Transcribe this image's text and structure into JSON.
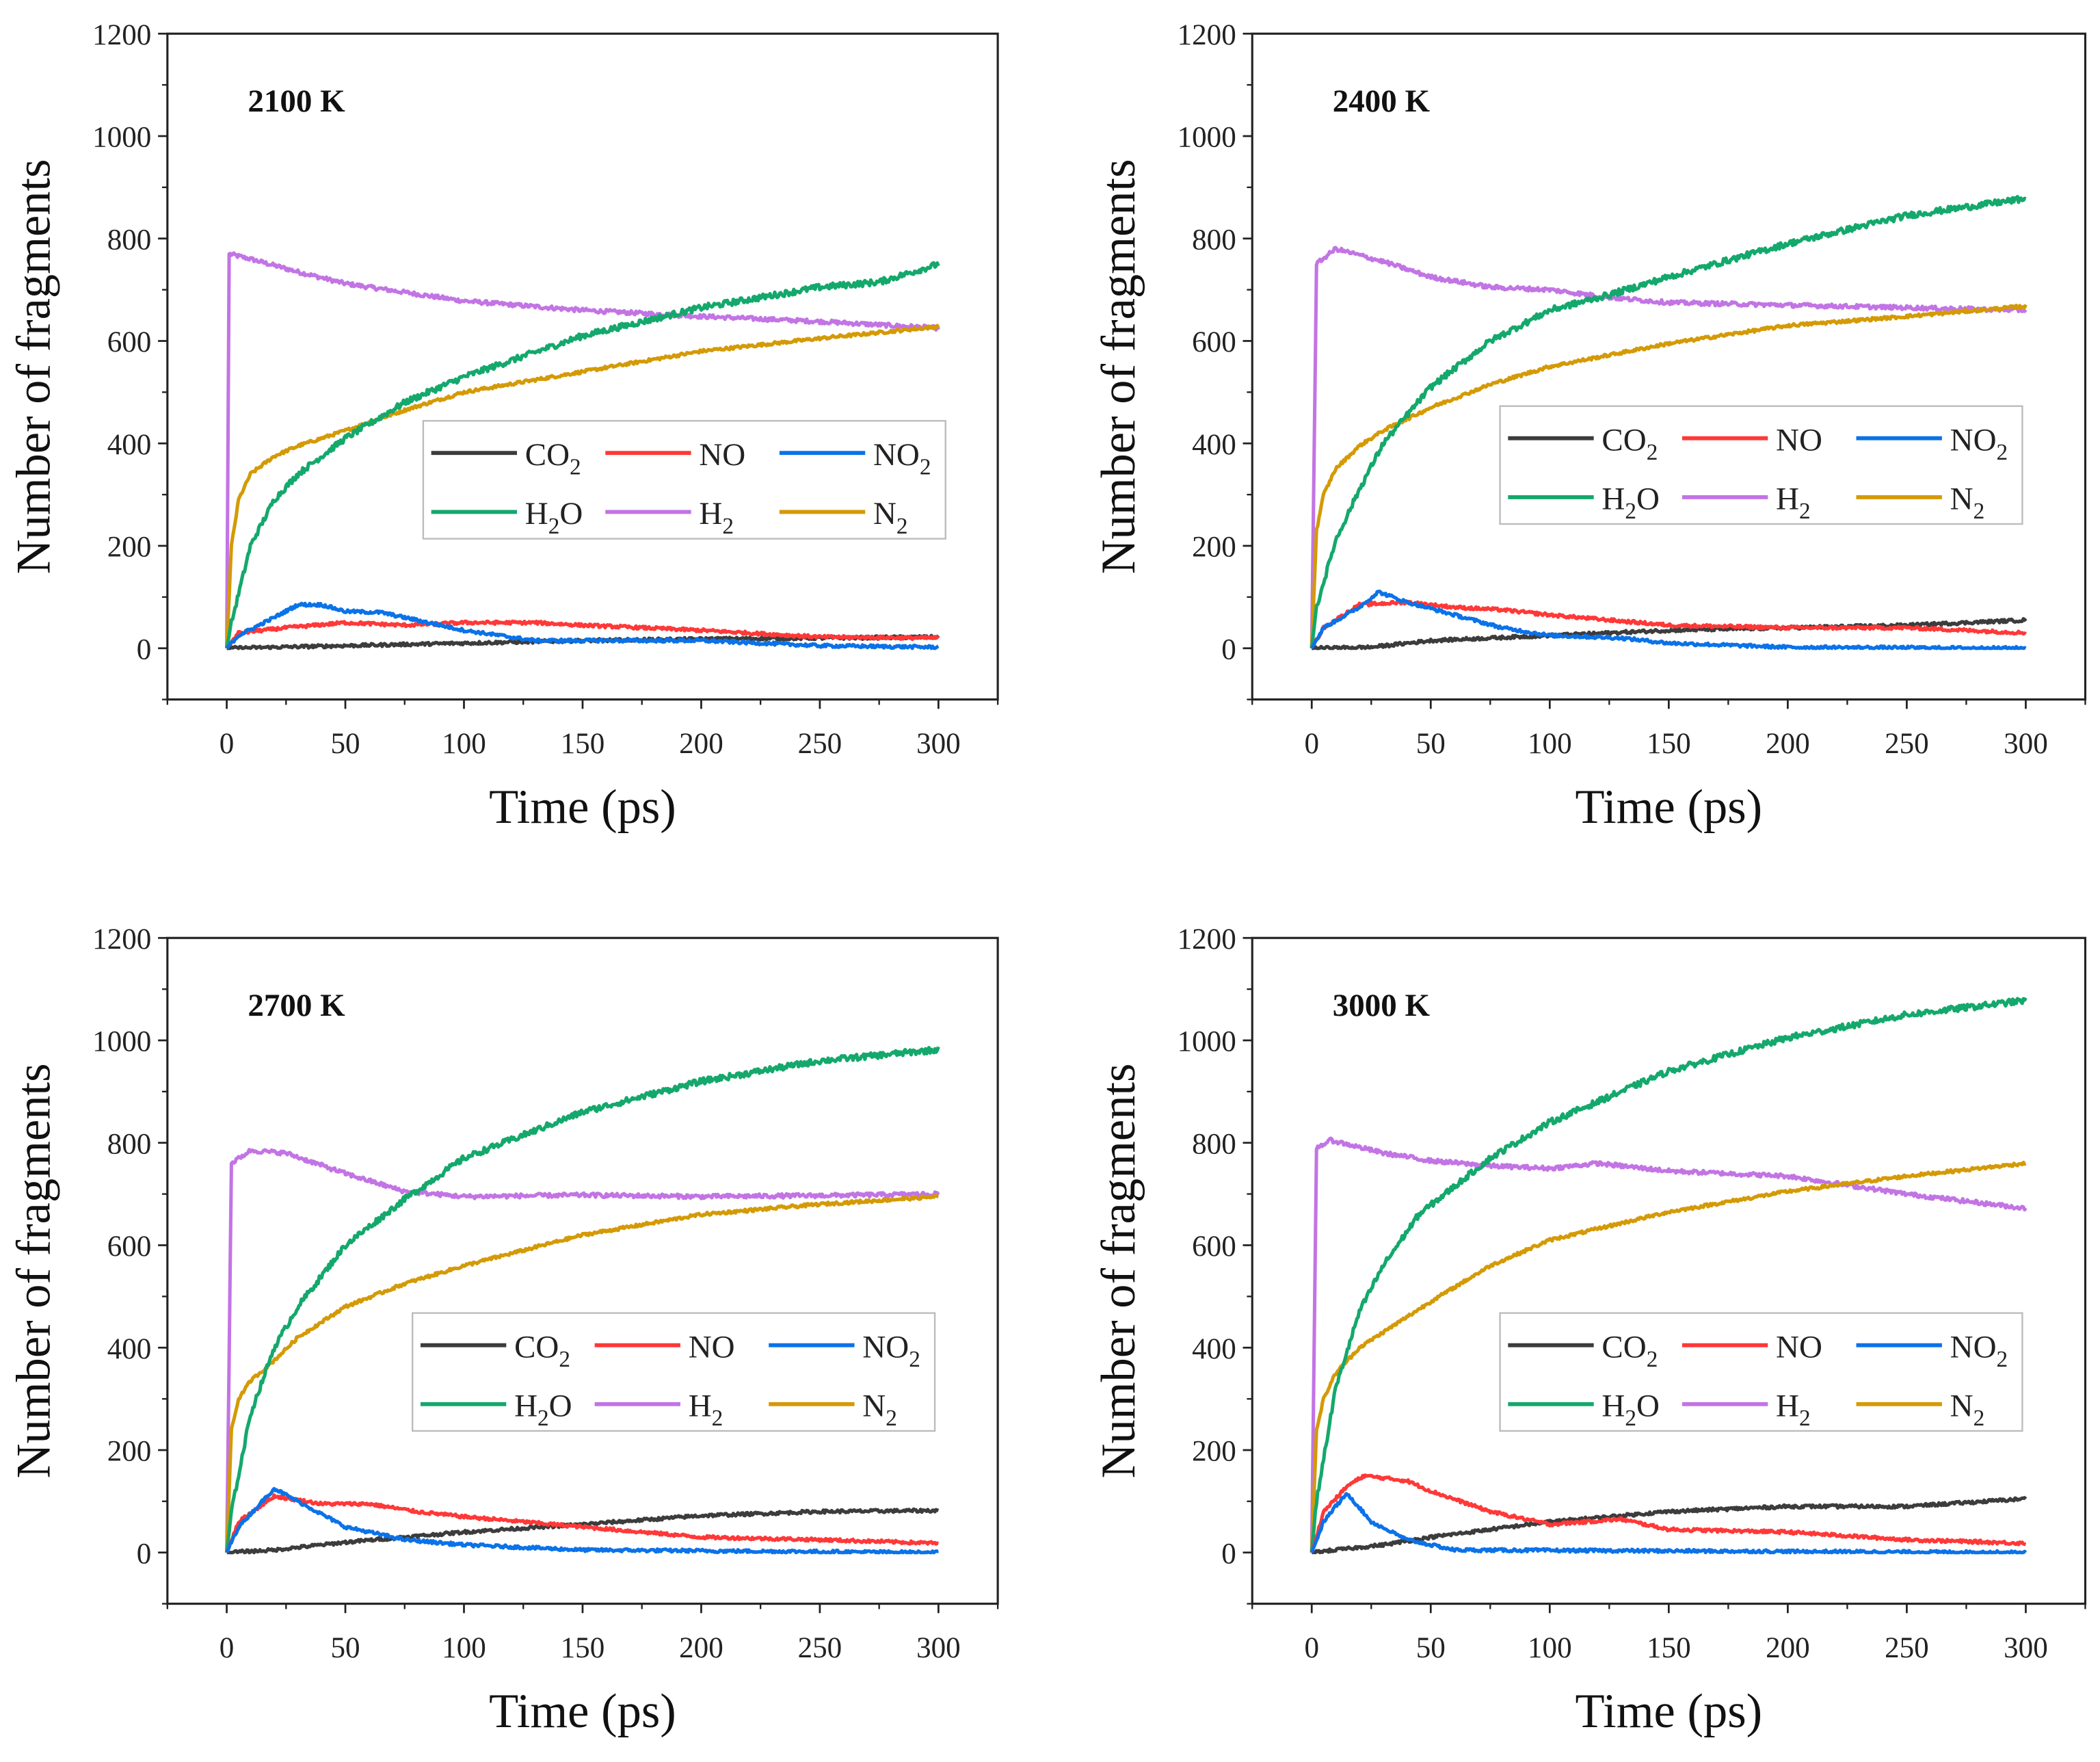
{
  "chart_data": [
    {
      "type": "line",
      "title": "2100 K",
      "xlabel": "Time (ps)",
      "ylabel": "Number of fragments",
      "xlim": [
        -25,
        325
      ],
      "ylim": [
        -100,
        1200
      ],
      "xticks": [
        0,
        50,
        100,
        150,
        200,
        250,
        300
      ],
      "yticks": [
        0,
        200,
        400,
        600,
        800,
        1000,
        1200
      ],
      "legend": "center-right",
      "series": [
        {
          "name": "CO2",
          "x": [
            0,
            50,
            100,
            150,
            200,
            300
          ],
          "y": [
            0,
            5,
            10,
            15,
            18,
            22
          ]
        },
        {
          "name": "NO",
          "x": [
            0,
            5,
            25,
            50,
            75,
            100,
            130,
            150,
            200,
            250,
            300
          ],
          "y": [
            0,
            30,
            40,
            50,
            45,
            50,
            50,
            45,
            35,
            22,
            20
          ]
        },
        {
          "name": "NO2",
          "x": [
            0,
            5,
            20,
            30,
            40,
            50,
            65,
            80,
            100,
            130,
            200,
            250,
            300
          ],
          "y": [
            0,
            25,
            60,
            85,
            85,
            72,
            70,
            55,
            35,
            15,
            15,
            5,
            2
          ]
        },
        {
          "name": "H2O",
          "x": [
            0,
            2,
            10,
            20,
            30,
            50,
            75,
            100,
            150,
            200,
            250,
            275,
            300
          ],
          "y": [
            0,
            50,
            200,
            290,
            340,
            410,
            480,
            530,
            610,
            665,
            705,
            715,
            750
          ]
        },
        {
          "name": "H2",
          "x": [
            0,
            1,
            10,
            30,
            50,
            75,
            100,
            150,
            200,
            250,
            300
          ],
          "y": [
            0,
            770,
            760,
            735,
            712,
            695,
            678,
            660,
            648,
            638,
            625
          ]
        },
        {
          "name": "N2",
          "x": [
            0,
            2,
            5,
            10,
            20,
            30,
            50,
            75,
            100,
            150,
            200,
            250,
            300
          ],
          "y": [
            0,
            200,
            290,
            340,
            375,
            395,
            425,
            465,
            500,
            540,
            580,
            605,
            628
          ]
        }
      ]
    },
    {
      "type": "line",
      "title": "2400 K",
      "xlabel": "Time (ps)",
      "ylabel": "Number of fragments",
      "xlim": [
        -25,
        325
      ],
      "ylim": [
        -100,
        1200
      ],
      "xticks": [
        0,
        50,
        100,
        150,
        200,
        250,
        300
      ],
      "yticks": [
        0,
        200,
        400,
        600,
        800,
        1000,
        1200
      ],
      "legend": "center-right",
      "series": [
        {
          "name": "CO2",
          "x": [
            0,
            25,
            50,
            100,
            150,
            200,
            250,
            300
          ],
          "y": [
            0,
            2,
            15,
            25,
            35,
            40,
            45,
            55
          ]
        },
        {
          "name": "NO",
          "x": [
            0,
            5,
            20,
            40,
            60,
            80,
            100,
            150,
            200,
            250,
            300
          ],
          "y": [
            0,
            40,
            85,
            90,
            80,
            75,
            65,
            45,
            40,
            40,
            30
          ]
        },
        {
          "name": "NO2",
          "x": [
            0,
            5,
            20,
            28,
            40,
            60,
            80,
            100,
            130,
            150,
            200,
            300
          ],
          "y": [
            0,
            40,
            80,
            110,
            90,
            65,
            40,
            25,
            20,
            10,
            2,
            0
          ]
        },
        {
          "name": "H2O",
          "x": [
            0,
            2,
            10,
            20,
            30,
            50,
            75,
            100,
            125,
            150,
            200,
            250,
            300
          ],
          "y": [
            0,
            80,
            210,
            310,
            400,
            510,
            600,
            660,
            690,
            725,
            790,
            845,
            878
          ]
        },
        {
          "name": "H2",
          "x": [
            0,
            2,
            10,
            30,
            50,
            75,
            100,
            125,
            150,
            200,
            250,
            300
          ],
          "y": [
            0,
            750,
            780,
            755,
            725,
            705,
            700,
            685,
            675,
            670,
            665,
            660
          ]
        },
        {
          "name": "N2",
          "x": [
            0,
            2,
            5,
            10,
            20,
            30,
            50,
            75,
            100,
            150,
            200,
            250,
            300
          ],
          "y": [
            0,
            230,
            300,
            350,
            395,
            425,
            470,
            515,
            550,
            595,
            630,
            648,
            668
          ]
        }
      ]
    },
    {
      "type": "line",
      "title": "2700 K",
      "xlabel": "Time (ps)",
      "ylabel": "Number of fragments",
      "xlim": [
        -25,
        325
      ],
      "ylim": [
        -100,
        1200
      ],
      "xticks": [
        0,
        50,
        100,
        150,
        200,
        250,
        300
      ],
      "yticks": [
        0,
        200,
        400,
        600,
        800,
        1000,
        1200
      ],
      "legend": "center-right",
      "series": [
        {
          "name": "CO2",
          "x": [
            0,
            20,
            50,
            100,
            150,
            200,
            250,
            300
          ],
          "y": [
            0,
            5,
            20,
            40,
            55,
            72,
            80,
            82
          ]
        },
        {
          "name": "NO",
          "x": [
            0,
            5,
            20,
            40,
            60,
            80,
            100,
            150,
            200,
            250,
            300
          ],
          "y": [
            0,
            60,
            110,
            95,
            95,
            80,
            70,
            50,
            30,
            25,
            18
          ]
        },
        {
          "name": "NO2",
          "x": [
            0,
            5,
            15,
            20,
            30,
            50,
            75,
            100,
            150,
            300
          ],
          "y": [
            0,
            50,
            100,
            125,
            100,
            50,
            25,
            15,
            5,
            0
          ]
        },
        {
          "name": "H2O",
          "x": [
            0,
            2,
            10,
            20,
            30,
            50,
            75,
            100,
            150,
            200,
            250,
            300
          ],
          "y": [
            0,
            80,
            270,
            400,
            480,
            600,
            690,
            770,
            860,
            920,
            960,
            982
          ]
        },
        {
          "name": "H2",
          "x": [
            0,
            2,
            10,
            25,
            50,
            75,
            100,
            150,
            200,
            250,
            300
          ],
          "y": [
            0,
            760,
            785,
            780,
            740,
            705,
            695,
            698,
            695,
            697,
            700
          ]
        },
        {
          "name": "N2",
          "x": [
            0,
            2,
            5,
            10,
            20,
            30,
            50,
            75,
            100,
            150,
            200,
            250,
            300
          ],
          "y": [
            0,
            240,
            300,
            335,
            375,
            420,
            480,
            525,
            560,
            620,
            660,
            680,
            695
          ]
        }
      ]
    },
    {
      "type": "line",
      "title": "3000 K",
      "xlabel": "Time (ps)",
      "ylabel": "Number of fragments",
      "xlim": [
        -25,
        325
      ],
      "ylim": [
        -100,
        1200
      ],
      "xticks": [
        0,
        50,
        100,
        150,
        200,
        250,
        300
      ],
      "yticks": [
        0,
        200,
        400,
        600,
        800,
        1000,
        1200
      ],
      "legend": "center-right",
      "series": [
        {
          "name": "CO2",
          "x": [
            0,
            10,
            30,
            50,
            100,
            150,
            200,
            250,
            300
          ],
          "y": [
            0,
            5,
            15,
            30,
            60,
            80,
            90,
            90,
            105
          ]
        },
        {
          "name": "NO",
          "x": [
            0,
            5,
            15,
            22,
            40,
            50,
            75,
            100,
            130,
            150,
            200,
            250,
            300
          ],
          "y": [
            0,
            80,
            130,
            150,
            140,
            120,
            80,
            55,
            65,
            45,
            40,
            25,
            18
          ]
        },
        {
          "name": "NO2",
          "x": [
            0,
            5,
            10,
            15,
            25,
            40,
            60,
            300
          ],
          "y": [
            0,
            60,
            90,
            115,
            60,
            25,
            5,
            0
          ]
        },
        {
          "name": "H2O",
          "x": [
            0,
            2,
            10,
            20,
            30,
            45,
            75,
            100,
            150,
            200,
            250,
            300
          ],
          "y": [
            0,
            100,
            320,
            470,
            560,
            660,
            770,
            840,
            940,
            1005,
            1050,
            1078
          ]
        },
        {
          "name": "H2",
          "x": [
            0,
            2,
            8,
            30,
            50,
            75,
            100,
            120,
            150,
            200,
            250,
            300
          ],
          "y": [
            0,
            790,
            805,
            780,
            765,
            755,
            750,
            760,
            745,
            735,
            700,
            672
          ]
        },
        {
          "name": "N2",
          "x": [
            0,
            2,
            5,
            10,
            20,
            30,
            50,
            75,
            100,
            150,
            200,
            250,
            300
          ],
          "y": [
            0,
            240,
            300,
            350,
            400,
            430,
            490,
            560,
            610,
            665,
            705,
            735,
            760
          ]
        }
      ]
    }
  ],
  "colors": {
    "CO2": "#3c3c3c",
    "NO": "#ff3838",
    "NO2": "#0b72e8",
    "H2O": "#14a86c",
    "H2": "#c274e4",
    "N2": "#d49a06"
  }
}
